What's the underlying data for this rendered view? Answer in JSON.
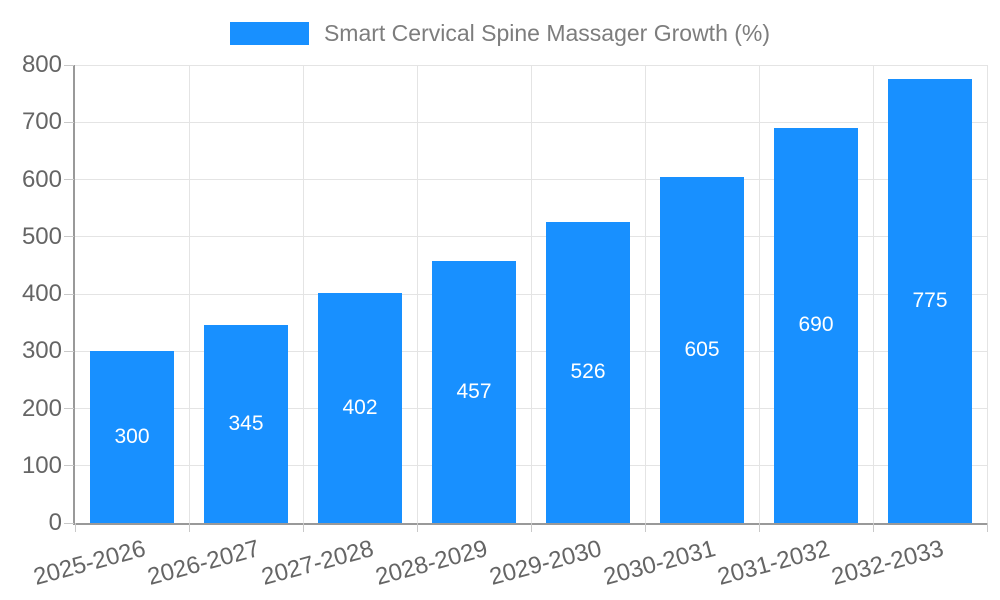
{
  "chart_data": {
    "type": "bar",
    "title": "Smart Cervical Spine Massager Growth (%)",
    "legend": {
      "label": "Smart Cervical Spine Massager Growth (%)",
      "position": "top-center"
    },
    "categories": [
      "2025-2026",
      "2026-2027",
      "2027-2028",
      "2028-2029",
      "2029-2030",
      "2030-2031",
      "2031-2032",
      "2032-2033"
    ],
    "values": [
      300,
      345,
      402,
      457,
      526,
      605,
      690,
      775
    ],
    "xlabel": "",
    "ylabel": "",
    "ylim": [
      0,
      800
    ],
    "yticks": [
      0,
      100,
      200,
      300,
      400,
      500,
      600,
      700,
      800
    ],
    "grid": true,
    "x_label_rotation_deg": -15,
    "value_labels_position": "inside-center",
    "colors": {
      "bar": "#1890ff",
      "value_label": "#ffffff",
      "gridline": "#e4e4e4",
      "axis_line": "#999999",
      "tick": "#c9c9c9",
      "axis_text": "#656565",
      "legend_text": "#7d7d7d",
      "background": "#ffffff"
    }
  }
}
